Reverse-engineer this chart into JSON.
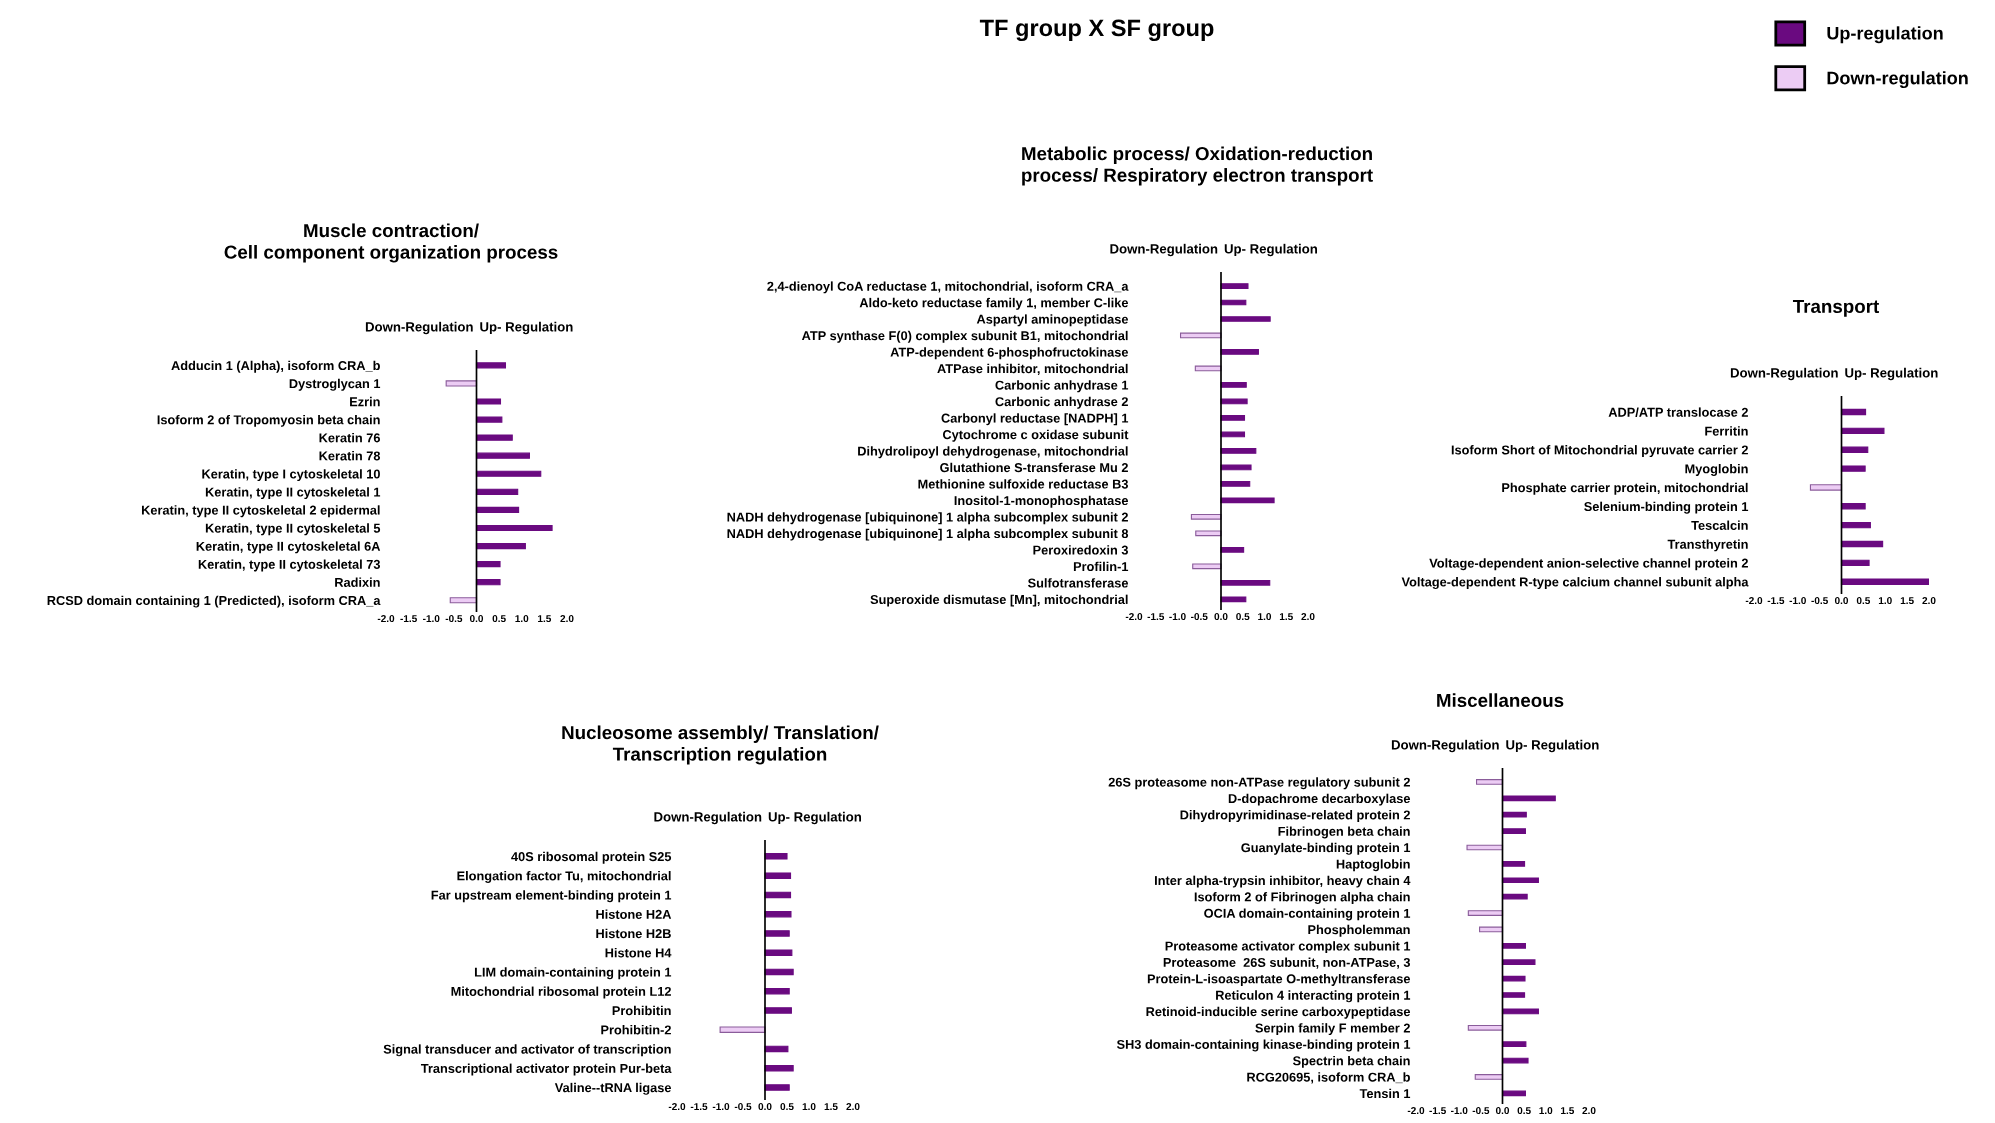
{
  "chart_data": [
    {
      "type": "bar",
      "orientation": "horizontal",
      "title": "Muscle contraction/\nCell component organization process",
      "legend": "top right",
      "annotations": [
        "Down-Regulation",
        "Up- Regulation",
        "TF group X SF group"
      ],
      "categories": [
        "Adducin 1 (Alpha), isoform CRA_b",
        "Dystroglycan 1",
        "Ezrin",
        "Isoform 2 of Tropomyosin beta chain",
        "Keratin 76",
        "Keratin 78",
        "Keratin, type I cytoskeletal 10",
        "Keratin, type II cytoskeletal 1",
        "Keratin, type II cytoskeletal 2 epidermal",
        "Keratin, type II cytoskeletal 5",
        "Keratin, type II cytoskeletal 6A",
        "Keratin, type II cytoskeletal 73",
        "Radixin",
        "RCSD domain containing 1 (Predicted), isoform CRA_a"
      ],
      "series": [
        {
          "name": "Up-regulation",
          "color": "#6a0a80",
          "values": [
            0.64,
            null,
            0.53,
            0.56,
            0.79,
            1.17,
            1.42,
            0.91,
            0.93,
            1.67,
            1.08,
            0.52,
            0.52,
            null
          ]
        },
        {
          "name": "Down-regulation",
          "color": "#ecccf4",
          "values": [
            null,
            -0.67,
            null,
            null,
            null,
            null,
            null,
            null,
            null,
            null,
            null,
            null,
            null,
            -0.58
          ]
        }
      ],
      "xlim": [
        -2.0,
        2.0
      ],
      "xticks": [
        {
          "value": -2,
          "label": "-2.0"
        },
        -1.5,
        {
          "value": -1,
          "label": "-1.0"
        },
        -0.5,
        {
          "value": 0,
          "label": "0.0"
        },
        0.5,
        {
          "value": 1,
          "label": "1.0"
        },
        1.5,
        {
          "value": 2,
          "label": "2.0"
        }
      ]
    },
    {
      "type": "bar",
      "orientation": "horizontal",
      "title": "Metabolic process/ Oxidation-reduction\nprocess/ Respiratory electron transport",
      "annotations": [
        "Down-Regulation",
        "Up- Regulation"
      ],
      "categories": [
        "2,4-dienoyl CoA reductase 1, mitochondrial, isoform CRA_a",
        "Aldo-keto reductase family 1, member C-like",
        "Aspartyl aminopeptidase",
        "ATP synthase F(0) complex subunit B1, mitochondrial",
        "ATP-dependent 6-phosphofructokinase",
        "ATPase inhibitor, mitochondrial",
        "Carbonic anhydrase 1",
        "Carbonic anhydrase 2",
        "Carbonyl reductase [NADPH] 1",
        "Cytochrome c oxidase subunit",
        "Dihydrolipoyl dehydrogenase, mitochondrial",
        "Glutathione S-transferase Mu 2",
        "Methionine sulfoxide reductase B3",
        "Inositol-1-monophosphatase",
        "NADH dehydrogenase [ubiquinone] 1 alpha subcomplex subunit 2",
        "NADH dehydrogenase [ubiquinone] 1 alpha subcomplex subunit 8",
        "Peroxiredoxin 3",
        "Profilin-1",
        "Sulfotransferase",
        "Superoxide dismutase [Mn], mitochondrial"
      ],
      "series": [
        {
          "color": "#6a0a80",
          "values": [
            0.62,
            0.57,
            1.13,
            null,
            0.86,
            null,
            0.58,
            0.6,
            0.54,
            0.54,
            0.8,
            0.69,
            0.66,
            1.22,
            null,
            null,
            0.52,
            null,
            1.12,
            0.57
          ]
        },
        {
          "color": "#ecccf4",
          "values": [
            null,
            null,
            null,
            -0.93,
            null,
            -0.59,
            null,
            null,
            null,
            null,
            null,
            null,
            null,
            null,
            -0.68,
            -0.58,
            null,
            -0.65,
            null,
            null
          ]
        }
      ],
      "xlim": [
        -2.0,
        2.0
      ],
      "xticks": [
        {
          "value": -2,
          "label": "-2.0"
        },
        -1.5,
        {
          "value": -1,
          "label": "-1.0"
        },
        -0.5,
        {
          "value": 0,
          "label": "0.0"
        },
        0.5,
        {
          "value": 1,
          "label": "1.0"
        },
        1.5,
        {
          "value": 2,
          "label": "2.0"
        }
      ]
    },
    {
      "type": "bar",
      "orientation": "horizontal",
      "title": "Transport",
      "annotations": [
        "Down-Regulation",
        "Up- Regulation"
      ],
      "categories": [
        "ADP/ATP translocase 2",
        "Ferritin",
        "Isoform Short of Mitochondrial pyruvate carrier 2",
        "Myoglobin",
        "Phosphate carrier protein, mitochondrial",
        "Selenium-binding protein 1",
        "Tescalcin",
        "Transthyretin",
        "Voltage-dependent anion-selective channel protein 2",
        "Voltage-dependent R-type calcium channel subunit alpha"
      ],
      "series": [
        {
          "color": "#6a0a80",
          "values": [
            0.55,
            0.97,
            0.6,
            0.54,
            null,
            0.54,
            0.66,
            0.94,
            0.63,
            2.0
          ]
        },
        {
          "color": "#ecccf4",
          "values": [
            null,
            null,
            null,
            null,
            -0.71,
            null,
            null,
            null,
            null,
            null
          ]
        }
      ],
      "xlim": [
        -2.0,
        2.0
      ],
      "xticks": [
        {
          "value": -2,
          "label": "-2.0"
        },
        -1.5,
        {
          "value": -1,
          "label": "-1.0"
        },
        -0.5,
        {
          "value": 0,
          "label": "0.0"
        },
        0.5,
        {
          "value": 1,
          "label": "1.0"
        },
        1.5,
        {
          "value": 2,
          "label": "2.0"
        }
      ]
    },
    {
      "type": "bar",
      "orientation": "horizontal",
      "title": "Nucleosome assembly/ Translation/\nTranscription regulation",
      "annotations": [
        "Down-Regulation",
        "Up- Regulation"
      ],
      "categories": [
        "40S ribosomal protein S25",
        "Elongation factor Tu, mitochondrial",
        "Far upstream element-binding protein 1",
        "Histone H2A",
        "Histone H2B",
        "Histone H4",
        "LIM domain-containing protein 1",
        "Mitochondrial ribosomal protein L12",
        "Prohibitin",
        "Prohibitin-2",
        "Signal transducer and activator of transcription",
        "Transcriptional activator protein Pur-beta",
        "Valine--tRNA ligase"
      ],
      "series": [
        {
          "color": "#6a0a80",
          "values": [
            0.5,
            0.58,
            0.58,
            0.59,
            0.55,
            0.61,
            0.64,
            0.55,
            0.6,
            null,
            0.52,
            0.64,
            0.55
          ]
        },
        {
          "color": "#ecccf4",
          "values": [
            null,
            null,
            null,
            null,
            null,
            null,
            null,
            null,
            null,
            -1.02,
            null,
            null,
            null
          ]
        }
      ],
      "xlim": [
        -2.0,
        2.0
      ],
      "xticks": [
        {
          "value": -2,
          "label": "-2.0"
        },
        -1.5,
        {
          "value": -1,
          "label": "-1.0"
        },
        -0.5,
        {
          "value": 0,
          "label": "0.0"
        },
        0.5,
        {
          "value": 1,
          "label": "1.0"
        },
        1.5,
        {
          "value": 2,
          "label": "2.0"
        }
      ]
    },
    {
      "type": "bar",
      "orientation": "horizontal",
      "title": "Miscellaneous",
      "annotations": [
        "Down-Regulation",
        "Up- Regulation"
      ],
      "categories": [
        "26S proteasome non-ATPase regulatory subunit 2",
        "D-dopachrome decarboxylase",
        "Dihydropyrimidinase-related protein 2",
        "Fibrinogen beta chain",
        "Guanylate-binding protein 1",
        "Haptoglobin",
        "Inter alpha-trypsin inhibitor, heavy chain 4",
        "Isoform 2 of Fibrinogen alpha chain",
        "OCIA domain-containing protein 1",
        "Phospholemman",
        "Proteasome activator complex subunit 1",
        "Proteasome  26S subunit, non-ATPase, 3",
        "Protein-L-isoaspartate O-methyltransferase",
        "Reticulon 4 interacting protein 1",
        "Retinoid-inducible serine carboxypeptidase",
        "Serpin family F member 2",
        "SH3 domain-containing kinase-binding protein 1",
        "Spectrin beta chain",
        "RCG20695, isoform CRA_b",
        "Tensin 1"
      ],
      "series": [
        {
          "color": "#6a0a80",
          "values": [
            null,
            1.22,
            0.55,
            0.53,
            null,
            0.51,
            0.83,
            0.57,
            null,
            null,
            0.53,
            0.75,
            0.52,
            0.51,
            0.83,
            null,
            0.54,
            0.59,
            null,
            0.53
          ]
        },
        {
          "color": "#ecccf4",
          "values": [
            -0.6,
            null,
            null,
            null,
            -0.82,
            null,
            null,
            null,
            -0.79,
            -0.53,
            null,
            null,
            null,
            null,
            null,
            -0.79,
            null,
            null,
            -0.63,
            null
          ]
        }
      ],
      "xlim": [
        -2.0,
        2.0
      ],
      "xticks": [
        {
          "value": -2,
          "label": "-2.0"
        },
        -1.5,
        {
          "value": -1,
          "label": "-1.0"
        },
        -0.5,
        {
          "value": 0,
          "label": "0.0"
        },
        0.5,
        {
          "value": 1,
          "label": "1.0"
        },
        1.5,
        {
          "value": 2,
          "label": "2.0"
        }
      ]
    }
  ]
}
